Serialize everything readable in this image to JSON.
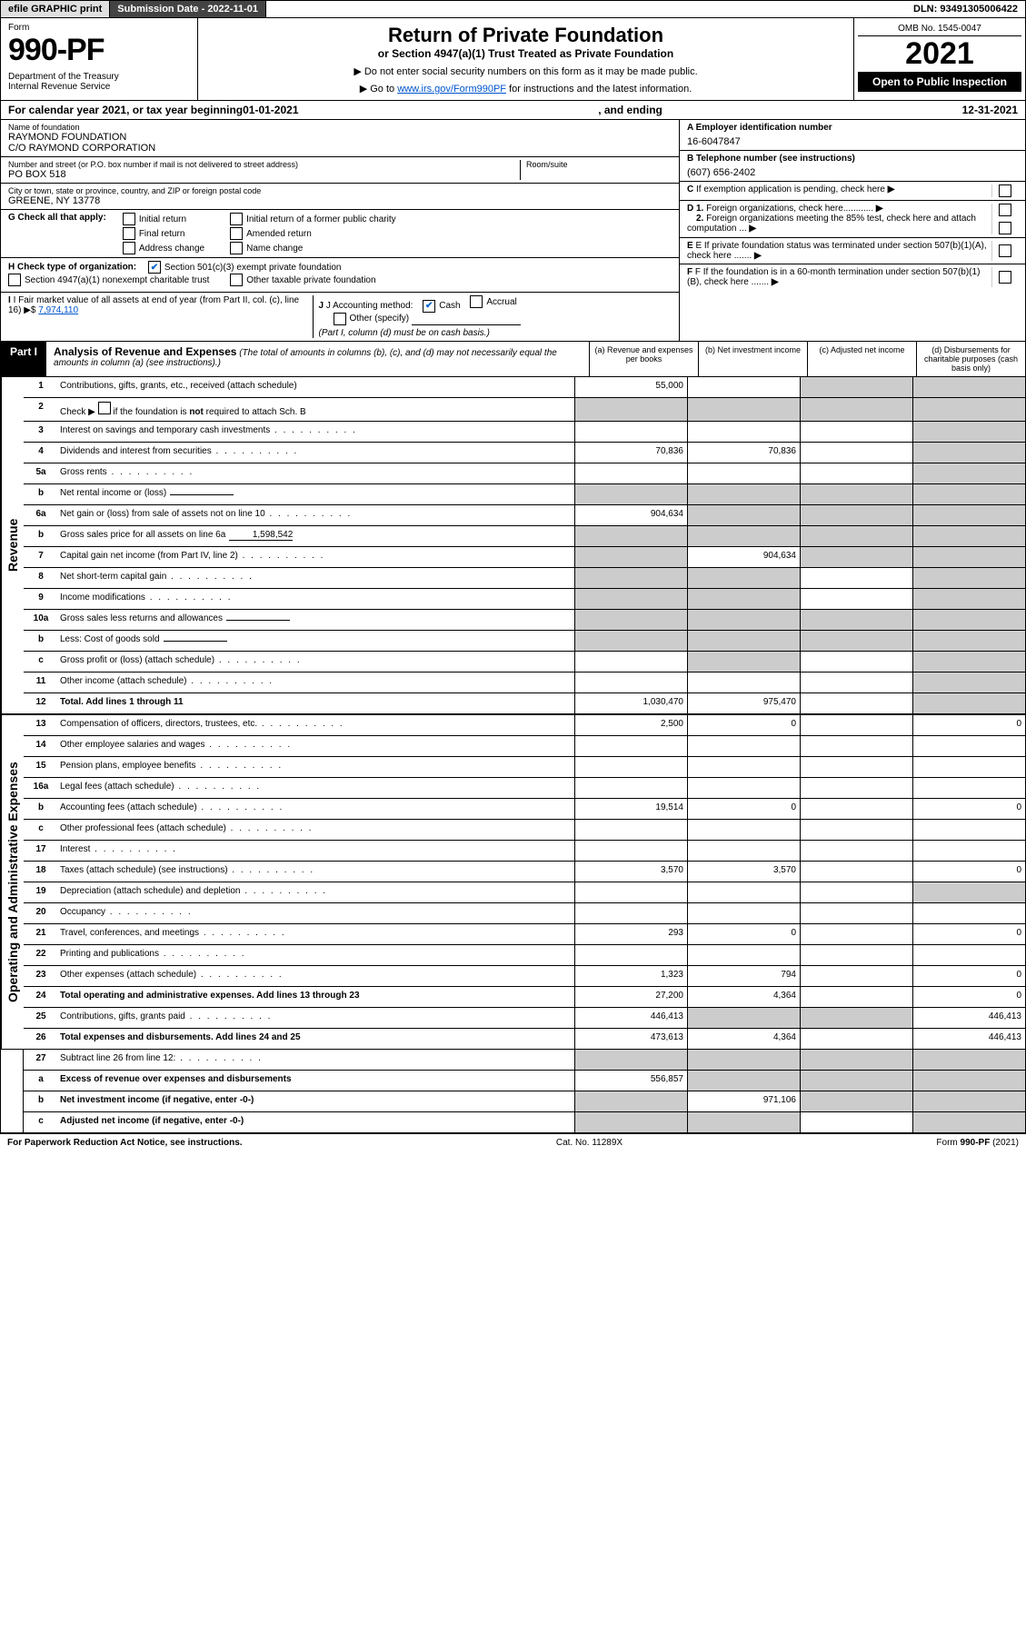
{
  "topbar": {
    "efile": "efile GRAPHIC print",
    "submission": "Submission Date - 2022-11-01",
    "dln": "DLN: 93491305006422"
  },
  "header": {
    "form_label": "Form",
    "form_number": "990-PF",
    "dept": "Department of the Treasury\nInternal Revenue Service",
    "title": "Return of Private Foundation",
    "subtitle": "or Section 4947(a)(1) Trust Treated as Private Foundation",
    "instr1": "▶ Do not enter social security numbers on this form as it may be made public.",
    "instr2_prefix": "▶ Go to ",
    "instr2_link": "www.irs.gov/Form990PF",
    "instr2_suffix": " for instructions and the latest information.",
    "omb": "OMB No. 1545-0047",
    "year": "2021",
    "open": "Open to Public Inspection"
  },
  "calyear": {
    "prefix": "For calendar year 2021, or tax year beginning ",
    "begin": "01-01-2021",
    "mid": " , and ending ",
    "end": "12-31-2021"
  },
  "entity": {
    "name_label": "Name of foundation",
    "name1": "RAYMOND FOUNDATION",
    "name2": "C/O RAYMOND CORPORATION",
    "addr_label": "Number and street (or P.O. box number if mail is not delivered to street address)",
    "addr": "PO BOX 518",
    "room_label": "Room/suite",
    "city_label": "City or town, state or province, country, and ZIP or foreign postal code",
    "city": "GREENE, NY  13778",
    "ein_label": "A Employer identification number",
    "ein": "16-6047847",
    "phone_label": "B Telephone number (see instructions)",
    "phone": "(607) 656-2402",
    "c_label": "C If exemption application is pending, check here",
    "d1_label": "D 1. Foreign organizations, check here............",
    "d2_label": "2. Foreign organizations meeting the 85% test, check here and attach computation ...",
    "e_label": "E  If private foundation status was terminated under section 507(b)(1)(A), check here .......",
    "f_label": "F  If the foundation is in a 60-month termination under section 507(b)(1)(B), check here .......",
    "g_label": "G Check all that apply:",
    "g_opts": [
      "Initial return",
      "Initial return of a former public charity",
      "Final return",
      "Amended return",
      "Address change",
      "Name change"
    ],
    "h_label": "H Check type of organization:",
    "h_opt1": "Section 501(c)(3) exempt private foundation",
    "h_opt2": "Section 4947(a)(1) nonexempt charitable trust",
    "h_opt3": "Other taxable private foundation",
    "i_label": "I Fair market value of all assets at end of year (from Part II, col. (c), line 16) ▶$ ",
    "i_val": "7,974,110",
    "j_label": "J Accounting method:",
    "j_cash": "Cash",
    "j_accrual": "Accrual",
    "j_other": "Other (specify)",
    "j_note": "(Part I, column (d) must be on cash basis.)"
  },
  "part1": {
    "label": "Part I",
    "title": "Analysis of Revenue and Expenses",
    "note": "(The total of amounts in columns (b), (c), and (d) may not necessarily equal the amounts in column (a) (see instructions).)",
    "col_a": "(a)   Revenue and expenses per books",
    "col_b": "(b)   Net investment income",
    "col_c": "(c)   Adjusted net income",
    "col_d": "(d)   Disbursements for charitable purposes (cash basis only)"
  },
  "sidelabels": {
    "revenue": "Revenue",
    "expenses": "Operating and Administrative Expenses"
  },
  "rows": [
    {
      "n": "1",
      "d": "Contributions, gifts, grants, etc., received (attach schedule)",
      "a": "55,000",
      "b": "",
      "c": "g",
      "dd": "g"
    },
    {
      "n": "2",
      "d": "Check ▶ ☐ if the foundation is not required to attach Sch. B",
      "a": "g",
      "b": "g",
      "c": "g",
      "dd": "g",
      "desc_html": true
    },
    {
      "n": "3",
      "d": "Interest on savings and temporary cash investments",
      "a": "",
      "b": "",
      "c": "",
      "dd": "g"
    },
    {
      "n": "4",
      "d": "Dividends and interest from securities",
      "a": "70,836",
      "b": "70,836",
      "c": "",
      "dd": "g"
    },
    {
      "n": "5a",
      "d": "Gross rents",
      "a": "",
      "b": "",
      "c": "",
      "dd": "g"
    },
    {
      "n": "b",
      "d": "Net rental income or (loss)",
      "a": "g",
      "b": "g",
      "c": "g",
      "dd": "g",
      "inline": ""
    },
    {
      "n": "6a",
      "d": "Net gain or (loss) from sale of assets not on line 10",
      "a": "904,634",
      "b": "g",
      "c": "g",
      "dd": "g"
    },
    {
      "n": "b",
      "d": "Gross sales price for all assets on line 6a",
      "a": "g",
      "b": "g",
      "c": "g",
      "dd": "g",
      "inline": "1,598,542"
    },
    {
      "n": "7",
      "d": "Capital gain net income (from Part IV, line 2)",
      "a": "g",
      "b": "904,634",
      "c": "g",
      "dd": "g"
    },
    {
      "n": "8",
      "d": "Net short-term capital gain",
      "a": "g",
      "b": "g",
      "c": "",
      "dd": "g"
    },
    {
      "n": "9",
      "d": "Income modifications",
      "a": "g",
      "b": "g",
      "c": "",
      "dd": "g"
    },
    {
      "n": "10a",
      "d": "Gross sales less returns and allowances",
      "a": "g",
      "b": "g",
      "c": "g",
      "dd": "g",
      "inline": ""
    },
    {
      "n": "b",
      "d": "Less: Cost of goods sold",
      "a": "g",
      "b": "g",
      "c": "g",
      "dd": "g",
      "inline": ""
    },
    {
      "n": "c",
      "d": "Gross profit or (loss) (attach schedule)",
      "a": "",
      "b": "g",
      "c": "",
      "dd": "g"
    },
    {
      "n": "11",
      "d": "Other income (attach schedule)",
      "a": "",
      "b": "",
      "c": "",
      "dd": "g"
    },
    {
      "n": "12",
      "d": "Total. Add lines 1 through 11",
      "a": "1,030,470",
      "b": "975,470",
      "c": "",
      "dd": "g",
      "bold": true
    }
  ],
  "exp_rows": [
    {
      "n": "13",
      "d": "Compensation of officers, directors, trustees, etc.",
      "a": "2,500",
      "b": "0",
      "c": "",
      "dd": "0"
    },
    {
      "n": "14",
      "d": "Other employee salaries and wages",
      "a": "",
      "b": "",
      "c": "",
      "dd": ""
    },
    {
      "n": "15",
      "d": "Pension plans, employee benefits",
      "a": "",
      "b": "",
      "c": "",
      "dd": ""
    },
    {
      "n": "16a",
      "d": "Legal fees (attach schedule)",
      "a": "",
      "b": "",
      "c": "",
      "dd": ""
    },
    {
      "n": "b",
      "d": "Accounting fees (attach schedule)",
      "a": "19,514",
      "b": "0",
      "c": "",
      "dd": "0"
    },
    {
      "n": "c",
      "d": "Other professional fees (attach schedule)",
      "a": "",
      "b": "",
      "c": "",
      "dd": ""
    },
    {
      "n": "17",
      "d": "Interest",
      "a": "",
      "b": "",
      "c": "",
      "dd": ""
    },
    {
      "n": "18",
      "d": "Taxes (attach schedule) (see instructions)",
      "a": "3,570",
      "b": "3,570",
      "c": "",
      "dd": "0"
    },
    {
      "n": "19",
      "d": "Depreciation (attach schedule) and depletion",
      "a": "",
      "b": "",
      "c": "",
      "dd": "g"
    },
    {
      "n": "20",
      "d": "Occupancy",
      "a": "",
      "b": "",
      "c": "",
      "dd": ""
    },
    {
      "n": "21",
      "d": "Travel, conferences, and meetings",
      "a": "293",
      "b": "0",
      "c": "",
      "dd": "0"
    },
    {
      "n": "22",
      "d": "Printing and publications",
      "a": "",
      "b": "",
      "c": "",
      "dd": ""
    },
    {
      "n": "23",
      "d": "Other expenses (attach schedule)",
      "a": "1,323",
      "b": "794",
      "c": "",
      "dd": "0"
    },
    {
      "n": "24",
      "d": "Total operating and administrative expenses. Add lines 13 through 23",
      "a": "27,200",
      "b": "4,364",
      "c": "",
      "dd": "0",
      "bold": true
    },
    {
      "n": "25",
      "d": "Contributions, gifts, grants paid",
      "a": "446,413",
      "b": "g",
      "c": "g",
      "dd": "446,413"
    },
    {
      "n": "26",
      "d": "Total expenses and disbursements. Add lines 24 and 25",
      "a": "473,613",
      "b": "4,364",
      "c": "",
      "dd": "446,413",
      "bold": true
    }
  ],
  "bottom_rows": [
    {
      "n": "27",
      "d": "Subtract line 26 from line 12:",
      "a": "g",
      "b": "g",
      "c": "g",
      "dd": "g"
    },
    {
      "n": "a",
      "d": "Excess of revenue over expenses and disbursements",
      "a": "556,857",
      "b": "g",
      "c": "g",
      "dd": "g",
      "bold": true
    },
    {
      "n": "b",
      "d": "Net investment income (if negative, enter -0-)",
      "a": "g",
      "b": "971,106",
      "c": "g",
      "dd": "g",
      "bold": true
    },
    {
      "n": "c",
      "d": "Adjusted net income (if negative, enter -0-)",
      "a": "g",
      "b": "g",
      "c": "",
      "dd": "g",
      "bold": true
    }
  ],
  "footer": {
    "left": "For Paperwork Reduction Act Notice, see instructions.",
    "center": "Cat. No. 11289X",
    "right": "Form 990-PF (2021)"
  },
  "colors": {
    "grey_fill": "#cccccc",
    "link": "#0055cc",
    "check": "#0066cc"
  }
}
